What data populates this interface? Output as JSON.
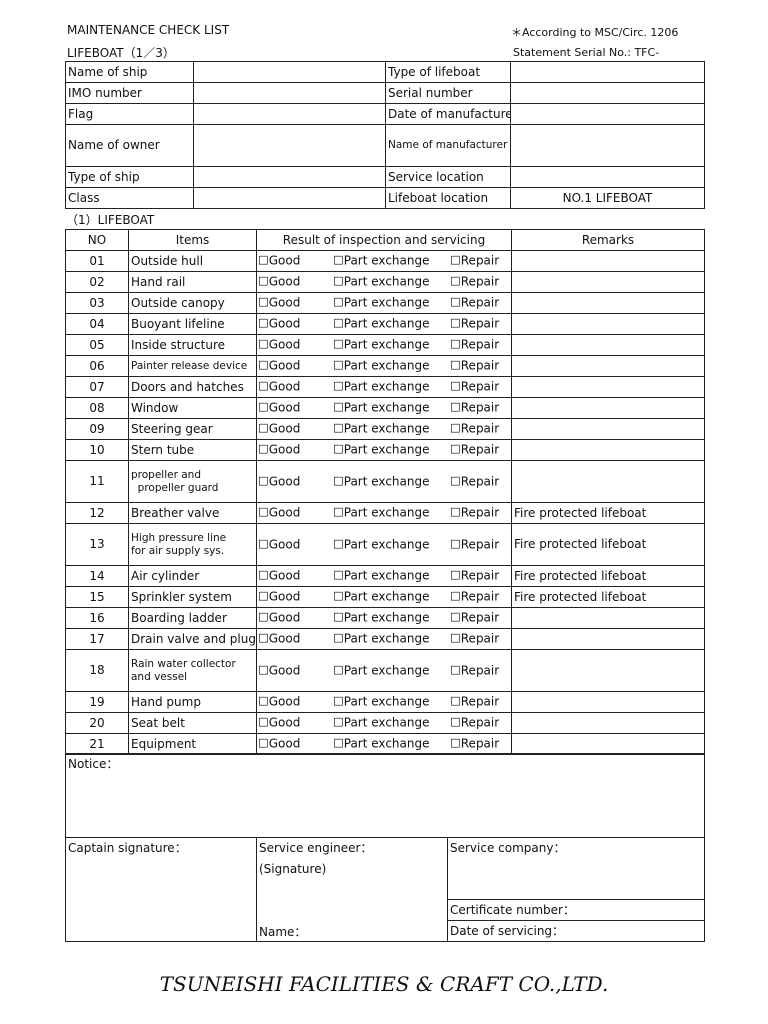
{
  "header": {
    "title": "MAINTENANCE  CHECK  LIST",
    "subtitle": "LIFEBOAT（1／3）",
    "reference": "＊According to MSC/Circ. 1206",
    "serial": "Statement Serial No.: TFC-"
  },
  "info": [
    {
      "left_label": "Name of ship",
      "left_value": "",
      "right_label": "Type of lifeboat",
      "right_value": ""
    },
    {
      "left_label": "IMO number",
      "left_value": "",
      "right_label": "Serial number",
      "right_value": ""
    },
    {
      "left_label": "Flag",
      "left_value": "",
      "right_label": "Date of manufacturer",
      "right_value": ""
    },
    {
      "left_label": "Name of owner",
      "left_value": "",
      "right_label": "Name of manufacturer",
      "right_value": ""
    },
    {
      "left_label": "Type of ship",
      "left_value": "",
      "right_label": "Service location",
      "right_value": ""
    },
    {
      "left_label": "Class",
      "left_value": "",
      "right_label": "Lifeboat location",
      "right_value": "NO.1  LIFEBOAT"
    }
  ],
  "section_title": "（1）LIFEBOAT",
  "columns": {
    "no": "NO",
    "items": "Items",
    "result": "Result of inspection and servicing",
    "remarks": "Remarks"
  },
  "options": {
    "good": "☐Good",
    "part": "☐Part exchange",
    "repair": "☐Repair"
  },
  "items": [
    {
      "no": "01",
      "item": "Outside hull",
      "remarks": ""
    },
    {
      "no": "02",
      "item": "Hand rail",
      "remarks": ""
    },
    {
      "no": "03",
      "item": "Outside canopy",
      "remarks": ""
    },
    {
      "no": "04",
      "item": "Buoyant lifeline",
      "remarks": ""
    },
    {
      "no": "05",
      "item": "Inside structure",
      "remarks": ""
    },
    {
      "no": "06",
      "item": "Painter release device",
      "remarks": ""
    },
    {
      "no": "07",
      "item": "Doors and hatches",
      "remarks": ""
    },
    {
      "no": "08",
      "item": "Window",
      "remarks": ""
    },
    {
      "no": "09",
      "item": "Steering gear",
      "remarks": ""
    },
    {
      "no": "10",
      "item": "Stern tube",
      "remarks": ""
    },
    {
      "no": "11",
      "item": "propeller and\n  propeller guard",
      "remarks": "",
      "tall": true
    },
    {
      "no": "12",
      "item": "Breather valve",
      "remarks": "Fire protected lifeboat"
    },
    {
      "no": "13",
      "item": "High pressure line\nfor air supply sys.",
      "remarks": "Fire protected lifeboat",
      "tall": true
    },
    {
      "no": "14",
      "item": "Air cylinder",
      "remarks": "Fire protected lifeboat"
    },
    {
      "no": "15",
      "item": "Sprinkler system",
      "remarks": "Fire protected lifeboat"
    },
    {
      "no": "16",
      "item": "Boarding ladder",
      "remarks": ""
    },
    {
      "no": "17",
      "item": "Drain valve and plug",
      "remarks": ""
    },
    {
      "no": "18",
      "item": "Rain water collector\nand vessel",
      "remarks": "",
      "tall": true
    },
    {
      "no": "19",
      "item": "Hand pump",
      "remarks": ""
    },
    {
      "no": "20",
      "item": "Seat belt",
      "remarks": ""
    },
    {
      "no": "21",
      "item": "Equipment",
      "remarks": ""
    }
  ],
  "notice_label": "Notice：",
  "signatures": {
    "captain": "Captain signature：",
    "engineer": "Service engineer：",
    "signature": "(Signature)",
    "name": "Name：",
    "company": "Service company：",
    "certificate": "Certificate number：",
    "date": "Date of servicing："
  },
  "footer": "TSUNEISHI FACILITIES & CRAFT CO.,LTD."
}
